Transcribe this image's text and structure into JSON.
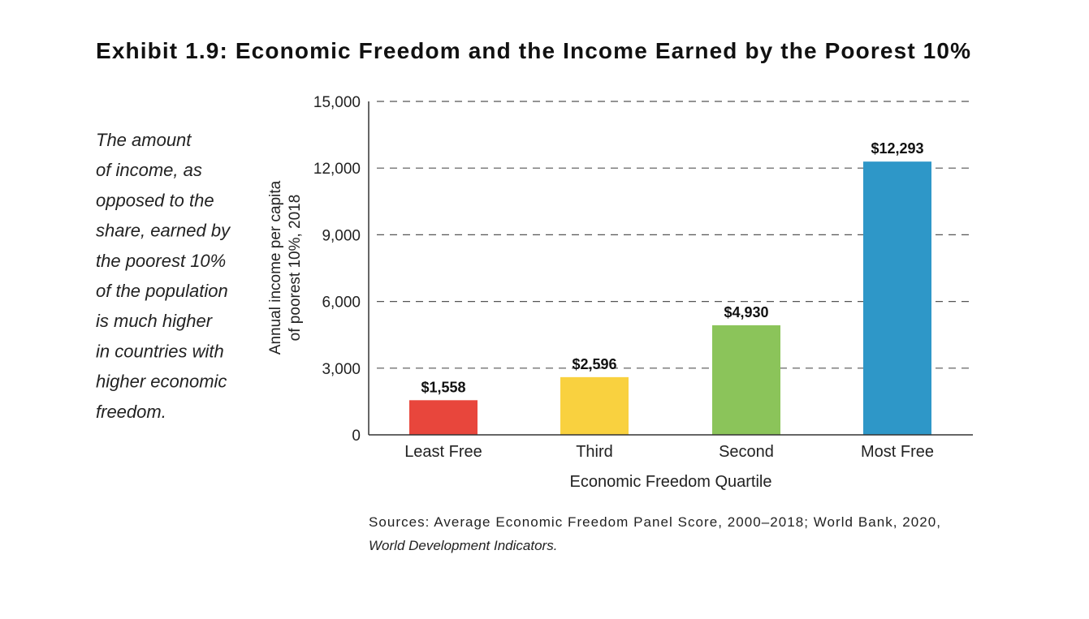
{
  "chart_data": {
    "type": "bar",
    "title": "Exhibit 1.9: Economic Freedom and the Income Earned by the Poorest 10%",
    "note_lines": [
      "The amount",
      "of income, as",
      "opposed to the",
      "share, earned by",
      "the poorest 10%",
      "of the population",
      "is much higher",
      "in countries with",
      "higher economic",
      "freedom."
    ],
    "categories": [
      "Least Free",
      "Third",
      "Second",
      "Most Free"
    ],
    "values": [
      1558,
      2596,
      4930,
      12293
    ],
    "data_labels": [
      "$1,558",
      "$2,596",
      "$4,930",
      "$12,293"
    ],
    "colors": [
      "#E8463C",
      "#F9D13F",
      "#8BC45A",
      "#2E97C8"
    ],
    "xlabel": "Economic Freedom Quartile",
    "ylabel_lines": [
      "Annual income per capita",
      "of poorest 10%, 2018"
    ],
    "ylim": [
      0,
      15000
    ],
    "yticks": [
      0,
      3000,
      6000,
      9000,
      12000,
      15000
    ],
    "ytick_labels": [
      "0",
      "3,000",
      "6,000",
      "9,000",
      "12,000",
      "15,000"
    ],
    "grid": "horizontal dashed",
    "legend": "none"
  },
  "sources": {
    "line1": "Sources: Average Economic Freedom Panel Score, 2000–2018; World Bank, 2020,",
    "line2": "World Development Indicators."
  }
}
